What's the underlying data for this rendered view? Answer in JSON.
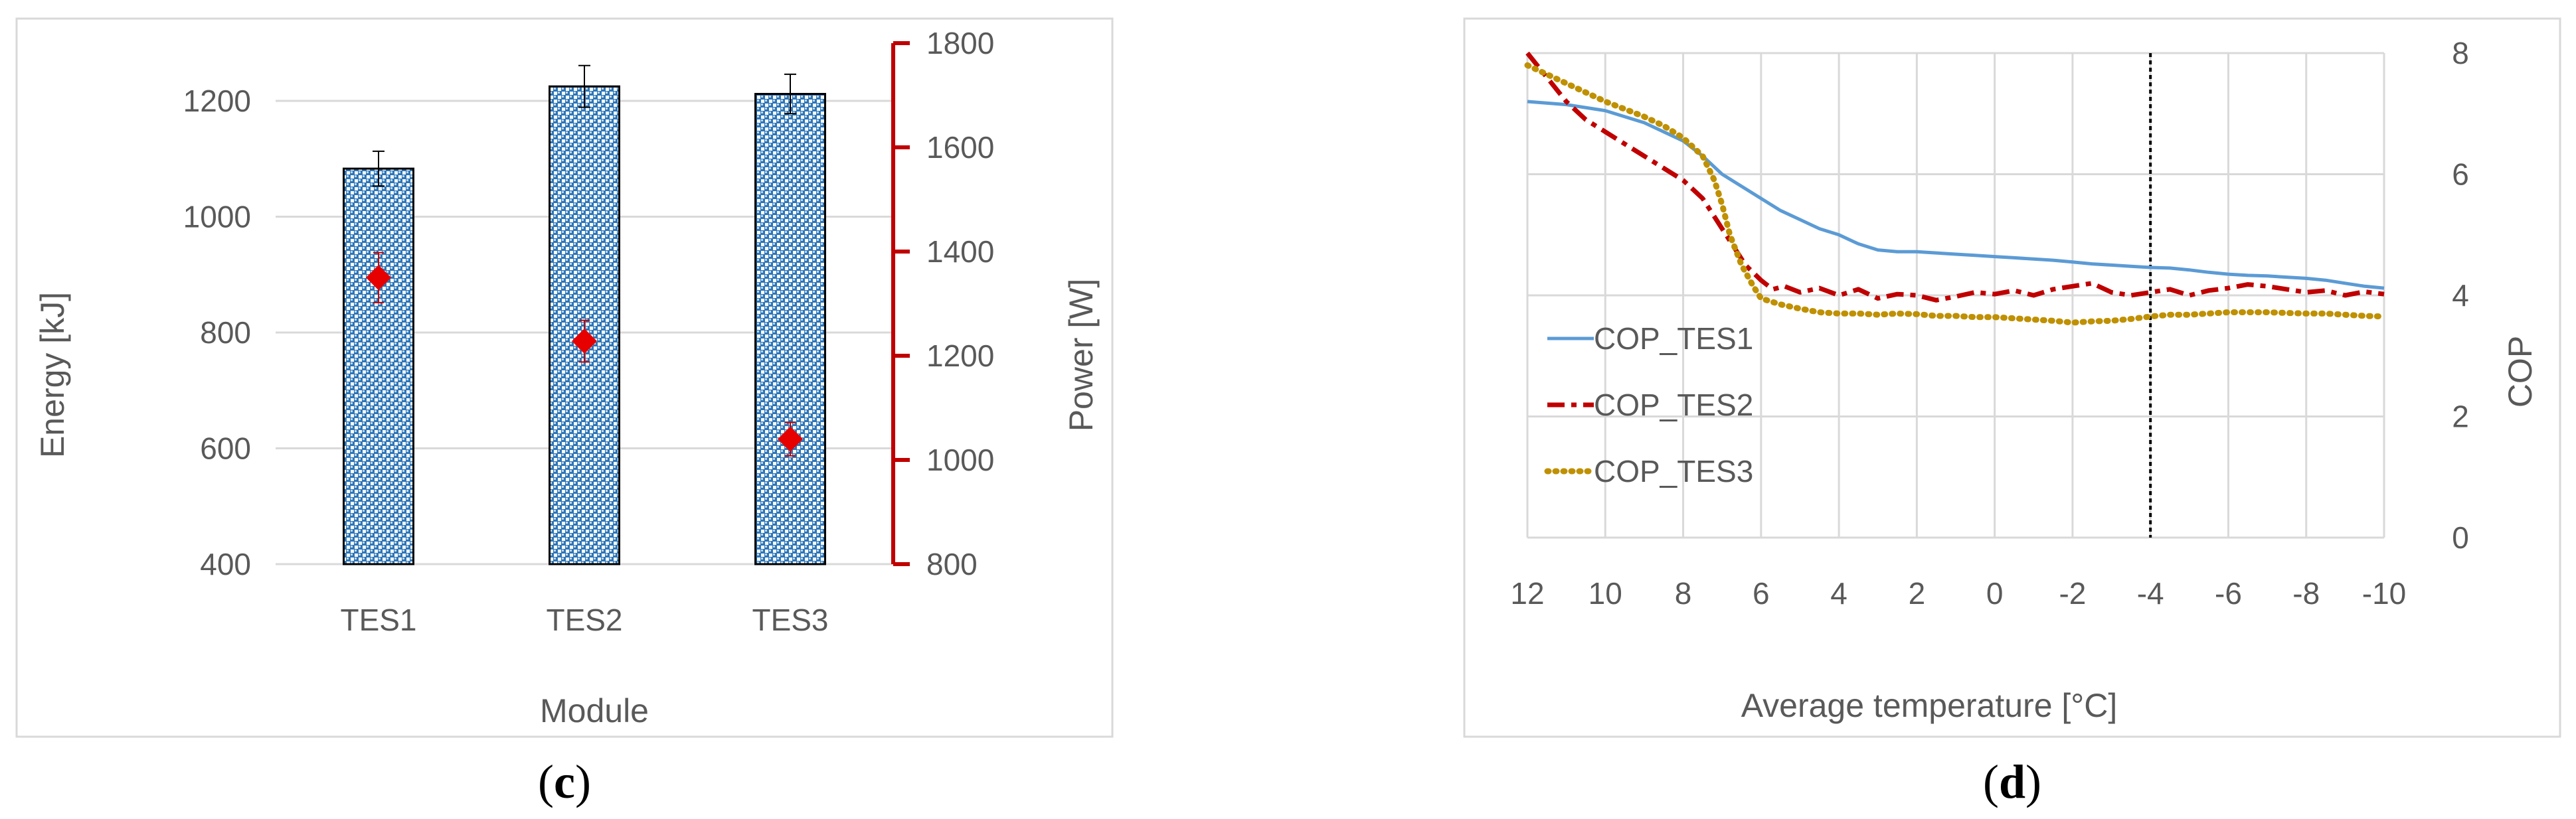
{
  "colors": {
    "bar_fill": "#bdd7ee",
    "bar_pattern": "#2e75b6",
    "power_marker": "#e60000",
    "power_axis": "#c00000",
    "tes1": "#5b9bd5",
    "tes2": "#c00000",
    "tes3": "#bf9000",
    "grid": "#d9d9d9",
    "text": "#595959"
  },
  "chart_data": [
    {
      "type": "bar",
      "panel_label": "(c)",
      "title": "",
      "xlabel": "Module",
      "ylabel": "Energy [kJ]",
      "ylabel_right": "Power [W]",
      "categories": [
        "TES1",
        "TES2",
        "TES3"
      ],
      "ylim": [
        400,
        1300
      ],
      "yticks": [
        400,
        600,
        800,
        1000,
        1200
      ],
      "y2lim": [
        800,
        1800
      ],
      "y2ticks": [
        800,
        1000,
        1200,
        1400,
        1600,
        1800
      ],
      "grid": true,
      "series": [
        {
          "name": "Energy",
          "axis": "left",
          "kind": "bar",
          "values": [
            1083,
            1225,
            1212
          ],
          "errors": [
            30,
            36,
            34
          ]
        },
        {
          "name": "Power",
          "axis": "right",
          "kind": "marker",
          "values": [
            1350,
            1228,
            1040
          ],
          "errors": [
            48,
            40,
            32
          ]
        }
      ]
    },
    {
      "type": "line",
      "panel_label": "(d)",
      "title": "",
      "xlabel": "Average temperature [°C]",
      "ylabel": "COP",
      "xlim": [
        12,
        -10
      ],
      "xticks": [
        12,
        10,
        8,
        6,
        4,
        2,
        0,
        -2,
        -4,
        -6,
        -8,
        -10
      ],
      "ylim": [
        0,
        8
      ],
      "yticks": [
        0,
        2,
        4,
        6,
        8
      ],
      "grid": true,
      "vertical_line_x": -4,
      "legend_position": "left",
      "series": [
        {
          "name": "COP_TES1",
          "style": "solid",
          "x": [
            12,
            11,
            10,
            9,
            8,
            7.5,
            7,
            6.5,
            6,
            5.5,
            5,
            4.5,
            4,
            3.5,
            3,
            2.5,
            2,
            1.5,
            1,
            0.5,
            0,
            -0.5,
            -1,
            -1.5,
            -2,
            -2.5,
            -3,
            -3.5,
            -4,
            -4.5,
            -5,
            -5.5,
            -6,
            -6.5,
            -7,
            -7.5,
            -8,
            -8.5,
            -9,
            -9.5,
            -10
          ],
          "y": [
            7.2,
            7.15,
            7.05,
            6.85,
            6.55,
            6.3,
            6.0,
            5.8,
            5.6,
            5.4,
            5.25,
            5.1,
            5.0,
            4.85,
            4.75,
            4.72,
            4.72,
            4.7,
            4.68,
            4.66,
            4.64,
            4.62,
            4.6,
            4.58,
            4.55,
            4.52,
            4.5,
            4.48,
            4.46,
            4.45,
            4.42,
            4.38,
            4.35,
            4.33,
            4.32,
            4.3,
            4.28,
            4.25,
            4.2,
            4.15,
            4.12
          ]
        },
        {
          "name": "COP_TES2",
          "style": "dash-dot",
          "x": [
            12,
            11.5,
            11,
            10.5,
            10,
            9.5,
            9,
            8.5,
            8,
            7.5,
            7,
            6.7,
            6.4,
            6,
            5.7,
            5.4,
            5,
            4.5,
            4,
            3.5,
            3,
            2.5,
            2,
            1.5,
            1,
            0.5,
            0,
            -0.5,
            -1,
            -1.5,
            -2,
            -2.5,
            -3,
            -3.5,
            -4,
            -4.5,
            -5,
            -5.5,
            -6,
            -6.5,
            -7,
            -7.5,
            -8,
            -8.5,
            -9,
            -9.5,
            -10
          ],
          "y": [
            8.0,
            7.6,
            7.2,
            6.9,
            6.7,
            6.5,
            6.3,
            6.1,
            5.9,
            5.6,
            5.1,
            4.8,
            4.5,
            4.25,
            4.1,
            4.15,
            4.05,
            4.12,
            4.0,
            4.1,
            3.95,
            4.02,
            4.0,
            3.92,
            3.98,
            4.05,
            4.02,
            4.08,
            4.0,
            4.1,
            4.15,
            4.2,
            4.05,
            4.0,
            4.05,
            4.1,
            4.0,
            4.08,
            4.12,
            4.18,
            4.15,
            4.1,
            4.05,
            4.08,
            4.0,
            4.06,
            4.02
          ]
        },
        {
          "name": "COP_TES3",
          "style": "dotted",
          "x": [
            12,
            11,
            10,
            9,
            8.5,
            8,
            7.5,
            7.2,
            7,
            6.8,
            6.5,
            6.2,
            6,
            5.5,
            5,
            4.5,
            4,
            3.5,
            3,
            2.5,
            2,
            1.5,
            1,
            0.5,
            0,
            -0.5,
            -1,
            -1.5,
            -2,
            -2.5,
            -3,
            -3.5,
            -4,
            -4.5,
            -5,
            -5.5,
            -6,
            -6.5,
            -7,
            -7.5,
            -8,
            -8.5,
            -9,
            -9.5,
            -10
          ],
          "y": [
            7.8,
            7.5,
            7.2,
            6.95,
            6.8,
            6.6,
            6.3,
            5.9,
            5.5,
            5.0,
            4.5,
            4.15,
            3.95,
            3.85,
            3.78,
            3.72,
            3.7,
            3.7,
            3.68,
            3.7,
            3.69,
            3.66,
            3.66,
            3.64,
            3.64,
            3.62,
            3.6,
            3.58,
            3.55,
            3.57,
            3.58,
            3.61,
            3.65,
            3.68,
            3.68,
            3.7,
            3.72,
            3.72,
            3.72,
            3.71,
            3.7,
            3.7,
            3.68,
            3.66,
            3.65
          ]
        }
      ]
    }
  ]
}
